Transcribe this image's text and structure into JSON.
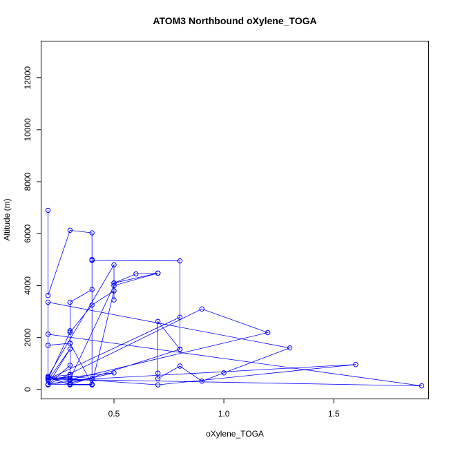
{
  "chart_data": {
    "type": "line",
    "title": "ATOM3 Northbound oXylene_TOGA",
    "xlabel": "oXylene_TOGA",
    "ylabel": "Altitude (m)",
    "xlim": [
      0.17,
      1.93
    ],
    "ylim": [
      -350,
      13400
    ],
    "x_ticks": [
      0.5,
      1.0,
      1.5
    ],
    "x_tick_labels": [
      "0.5",
      "1.0",
      "1.5"
    ],
    "y_ticks": [
      0,
      2000,
      4000,
      6000,
      8000,
      10000,
      12000
    ],
    "y_tick_labels": [
      "0",
      "2000",
      "4000",
      "6000",
      "8000",
      "10000",
      "12000"
    ],
    "grid": false,
    "legend": "none",
    "color": "#0000ff",
    "series": [
      {
        "x": [
          0.2,
          0.2,
          0.3,
          0.4,
          0.4,
          0.4,
          0.4,
          0.3,
          0.3,
          0.3,
          0.2,
          0.2,
          0.2,
          0.3,
          0.3,
          0.3,
          0.2,
          0.2,
          0.2,
          0.4,
          0.4,
          0.3,
          0.2,
          0.5,
          0.5,
          0.5,
          0.5,
          0.4,
          0.3,
          0.2,
          0.8,
          0.8,
          0.8,
          0.7,
          0.7,
          0.7,
          0.8,
          0.9,
          1.0,
          1.3,
          0.2,
          0.2,
          0.4,
          0.3,
          0.2,
          0.3,
          0.5,
          0.7,
          0.7,
          0.5,
          0.6,
          0.7,
          0.5,
          0.5,
          0.5,
          0.4,
          0.4,
          0.4,
          0.8,
          0.8,
          0.8,
          0.3,
          0.3,
          0.2,
          0.7,
          1.6,
          0.3,
          0.3,
          0.4,
          0.4,
          0.3,
          0.3,
          0.5,
          0.2,
          1.9,
          0.2,
          0.2,
          0.3,
          0.2,
          0.9,
          1.2,
          0.2
        ],
        "y": [
          6900,
          3620,
          6130,
          6030,
          5000,
          5000,
          3850,
          3360,
          2260,
          1780,
          1700,
          400,
          450,
          200,
          580,
          930,
          190,
          400,
          200,
          200,
          180,
          180,
          500,
          4800,
          4100,
          3450,
          3800,
          3250,
          2200,
          400,
          2780,
          1550,
          1550,
          2620,
          630,
          420,
          900,
          320,
          640,
          1600,
          3360,
          200,
          420,
          500,
          400,
          400,
          4000,
          4480,
          4480,
          4100,
          4450,
          4480,
          4100,
          4000,
          3800,
          200,
          200,
          4970,
          4950,
          1550,
          1550,
          190,
          570,
          470,
          180,
          960,
          360,
          1780,
          200,
          180,
          190,
          250,
          640,
          400,
          140,
          2130,
          360,
          1560,
          190,
          3100,
          2190,
          180
        ]
      }
    ]
  }
}
